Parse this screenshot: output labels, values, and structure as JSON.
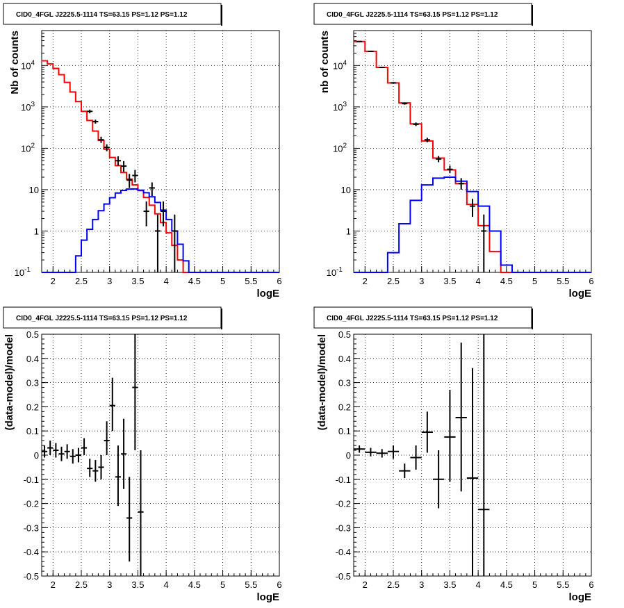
{
  "chart_data": [
    {
      "type": "line",
      "title": "CID0_4FGL J2225.5-1114 TS=63.15 PS=1.12 PS=1.12",
      "xlabel": "logE",
      "ylabel": "Nb of counts",
      "xlim": [
        1.8,
        6.0
      ],
      "ylim": [
        0.1,
        70000
      ],
      "yscale": "log",
      "grid": true,
      "x_ticks": [
        "2",
        "2.5",
        "3",
        "3.5",
        "4",
        "4.5",
        "5",
        "5.5",
        "6"
      ],
      "y_ticks": [
        {
          "v": 0.1,
          "label": "10^-1"
        },
        {
          "v": 1,
          "label": "1"
        },
        {
          "v": 10,
          "label": "10"
        },
        {
          "v": 100,
          "label": "10^2"
        },
        {
          "v": 1000,
          "label": "10^3"
        },
        {
          "v": 10000,
          "label": "10^4"
        }
      ],
      "bin_edges": [
        1.8,
        1.9,
        2.0,
        2.1,
        2.2,
        2.3,
        2.4,
        2.5,
        2.6,
        2.7,
        2.8,
        2.9,
        3.0,
        3.1,
        3.2,
        3.3,
        3.4,
        3.5,
        3.6,
        3.7,
        3.8,
        3.9,
        4.0,
        4.1,
        4.2,
        4.3,
        4.4,
        4.5,
        4.6,
        4.7,
        4.8,
        4.9,
        5.0,
        5.1,
        5.2,
        5.3,
        5.4,
        5.5,
        5.6,
        5.7,
        5.8,
        5.9,
        6.0
      ],
      "series": [
        {
          "color": "#ff0000",
          "style": "step",
          "values": [
            13000,
            11000,
            8500,
            6000,
            3900,
            2300,
            1350,
            780,
            470,
            260,
            155,
            95,
            60,
            38,
            26,
            18,
            13,
            9.5,
            6.5,
            4.2,
            2.6,
            1.6,
            0.9,
            0.45,
            0.2,
            0.1,
            0.1,
            0.1,
            0.1,
            0.1,
            0.1,
            0.1,
            0.1,
            0.1,
            0.1,
            0.1,
            0.1,
            0.1,
            0.1,
            0.1,
            0.1,
            0.1
          ]
        },
        {
          "color": "#0000ff",
          "style": "step",
          "values": [
            0.1,
            0.1,
            0.1,
            0.1,
            0.1,
            0.1,
            0.25,
            0.6,
            1.1,
            1.9,
            3.1,
            4.5,
            6.4,
            8.3,
            9.6,
            10.3,
            10.4,
            9.7,
            8.4,
            6.7,
            4.9,
            3.2,
            1.9,
            1.0,
            0.48,
            0.19,
            0.1,
            0.1,
            0.1,
            0.1,
            0.1,
            0.1,
            0.1,
            0.1,
            0.1,
            0.1,
            0.1,
            0.1,
            0.1,
            0.1,
            0.1,
            0.1
          ]
        }
      ],
      "points": [
        {
          "x": 2.65,
          "y": 780,
          "lo": 700,
          "hi": 860
        },
        {
          "x": 2.75,
          "y": 440,
          "lo": 395,
          "hi": 490
        },
        {
          "x": 2.85,
          "y": 160,
          "lo": 135,
          "hi": 190
        },
        {
          "x": 2.95,
          "y": 105,
          "lo": 85,
          "hi": 125
        },
        {
          "x": 3.15,
          "y": 50,
          "lo": 38,
          "hi": 64
        },
        {
          "x": 3.25,
          "y": 37,
          "lo": 27,
          "hi": 49
        },
        {
          "x": 3.35,
          "y": 17,
          "lo": 11,
          "hi": 24
        },
        {
          "x": 3.45,
          "y": 22,
          "lo": 15,
          "hi": 30
        },
        {
          "x": 3.65,
          "y": 3,
          "lo": 1.3,
          "hi": 5.2
        },
        {
          "x": 3.75,
          "y": 11,
          "lo": 7,
          "hi": 15
        },
        {
          "x": 3.85,
          "y": 1,
          "lo": 0.1,
          "hi": 2.5
        },
        {
          "x": 3.95,
          "y": 3,
          "lo": 1.3,
          "hi": 5.2
        },
        {
          "x": 4.15,
          "y": 1,
          "lo": 0.1,
          "hi": 2.5
        }
      ]
    },
    {
      "type": "line",
      "title": "CID0_4FGL J2225.5-1114 TS=63.15 PS=1.12 PS=1.12",
      "xlabel": "logE",
      "ylabel": "nb of counts",
      "xlim": [
        1.8,
        6.0
      ],
      "ylim": [
        0.1,
        70000
      ],
      "yscale": "log",
      "grid": true,
      "x_ticks": [
        "2",
        "2.5",
        "3",
        "3.5",
        "4",
        "4.5",
        "5",
        "5.5",
        "6"
      ],
      "y_ticks": [
        {
          "v": 0.1,
          "label": "10^-1"
        },
        {
          "v": 1,
          "label": "1"
        },
        {
          "v": 10,
          "label": "10"
        },
        {
          "v": 100,
          "label": "10^2"
        },
        {
          "v": 1000,
          "label": "10^3"
        },
        {
          "v": 10000,
          "label": "10^4"
        }
      ],
      "bin_edges": [
        1.8,
        2.0,
        2.2,
        2.4,
        2.6,
        2.8,
        3.0,
        3.2,
        3.4,
        3.6,
        3.8,
        4.0,
        4.2,
        4.4,
        4.6,
        4.8,
        5.0,
        5.2,
        5.4,
        5.6,
        5.8,
        6.0
      ],
      "series": [
        {
          "color": "#ff0000",
          "style": "step",
          "values": [
            38000,
            22000,
            9000,
            3800,
            1250,
            390,
            150,
            58,
            30,
            14,
            4.4,
            1.35,
            0.32,
            0.1,
            0.1,
            0.1,
            0.1,
            0.1,
            0.1,
            0.1,
            0.1
          ]
        },
        {
          "color": "#0000ff",
          "style": "step",
          "values": [
            0.1,
            0.1,
            0.1,
            0.3,
            1.5,
            5.5,
            13,
            19,
            20,
            16,
            9,
            4,
            1,
            0.15,
            0.1,
            0.1,
            0.1,
            0.1,
            0.1,
            0.1,
            0.1
          ]
        }
      ],
      "points": [
        {
          "x": 1.9,
          "y": 38000,
          "lo": 37200,
          "hi": 38800
        },
        {
          "x": 2.1,
          "y": 22000,
          "lo": 21400,
          "hi": 22600
        },
        {
          "x": 2.3,
          "y": 9000,
          "lo": 8700,
          "hi": 9300
        },
        {
          "x": 2.5,
          "y": 3800,
          "lo": 3650,
          "hi": 3950
        },
        {
          "x": 2.7,
          "y": 1200,
          "lo": 1130,
          "hi": 1270
        },
        {
          "x": 2.9,
          "y": 380,
          "lo": 345,
          "hi": 420
        },
        {
          "x": 3.1,
          "y": 160,
          "lo": 140,
          "hi": 180
        },
        {
          "x": 3.3,
          "y": 55,
          "lo": 46,
          "hi": 65
        },
        {
          "x": 3.5,
          "y": 31,
          "lo": 25,
          "hi": 38
        },
        {
          "x": 3.7,
          "y": 14,
          "lo": 10,
          "hi": 19
        },
        {
          "x": 3.9,
          "y": 4,
          "lo": 2.2,
          "hi": 6
        },
        {
          "x": 4.1,
          "y": 1,
          "lo": 0.1,
          "hi": 2.5
        }
      ]
    },
    {
      "type": "scatter",
      "title": "CID0_4FGL J2225.5-1114 TS=63.15 PS=1.12 PS=1.12",
      "xlabel": "logE",
      "ylabel": "(data-model)/model",
      "xlim": [
        1.8,
        6.0
      ],
      "ylim": [
        -0.5,
        0.5
      ],
      "yscale": "linear",
      "grid": true,
      "x_ticks": [
        "2",
        "2.5",
        "3",
        "3.5",
        "4",
        "4.5",
        "5",
        "5.5",
        "6"
      ],
      "y_ticks": [
        {
          "v": -0.5,
          "label": "-0.5"
        },
        {
          "v": -0.4,
          "label": "-0.4"
        },
        {
          "v": -0.3,
          "label": "-0.3"
        },
        {
          "v": -0.2,
          "label": "-0.2"
        },
        {
          "v": -0.1,
          "label": "-0.1"
        },
        {
          "v": 0,
          "label": "0"
        },
        {
          "v": 0.1,
          "label": "0.1"
        },
        {
          "v": 0.2,
          "label": "0.2"
        },
        {
          "v": 0.3,
          "label": "0.3"
        },
        {
          "v": 0.4,
          "label": "0.4"
        },
        {
          "v": 0.5,
          "label": "0.5"
        }
      ],
      "points": [
        {
          "x": 1.85,
          "y": 0.015,
          "lo": -0.01,
          "hi": 0.04,
          "xerr": 0.05
        },
        {
          "x": 1.95,
          "y": 0.03,
          "lo": 0.0,
          "hi": 0.06,
          "xerr": 0.05
        },
        {
          "x": 2.05,
          "y": 0.02,
          "lo": -0.01,
          "hi": 0.05,
          "xerr": 0.05
        },
        {
          "x": 2.15,
          "y": 0.005,
          "lo": -0.025,
          "hi": 0.035,
          "xerr": 0.05
        },
        {
          "x": 2.25,
          "y": 0.015,
          "lo": -0.015,
          "hi": 0.045,
          "xerr": 0.05
        },
        {
          "x": 2.35,
          "y": -0.005,
          "lo": -0.035,
          "hi": 0.025,
          "xerr": 0.05
        },
        {
          "x": 2.45,
          "y": 0.0,
          "lo": -0.03,
          "hi": 0.03,
          "xerr": 0.05
        },
        {
          "x": 2.55,
          "y": 0.03,
          "lo": 0.0,
          "hi": 0.07,
          "xerr": 0.05
        },
        {
          "x": 2.65,
          "y": -0.055,
          "lo": -0.09,
          "hi": -0.015,
          "xerr": 0.05
        },
        {
          "x": 2.75,
          "y": -0.065,
          "lo": -0.11,
          "hi": -0.02,
          "xerr": 0.05
        },
        {
          "x": 2.85,
          "y": -0.05,
          "lo": -0.1,
          "hi": 0.0,
          "xerr": 0.05
        },
        {
          "x": 2.95,
          "y": 0.06,
          "lo": 0.0,
          "hi": 0.14,
          "xerr": 0.05
        },
        {
          "x": 3.05,
          "y": 0.205,
          "lo": 0.1,
          "hi": 0.32,
          "xerr": 0.05
        },
        {
          "x": 3.15,
          "y": -0.09,
          "lo": -0.21,
          "hi": 0.04,
          "xerr": 0.05
        },
        {
          "x": 3.25,
          "y": 0.005,
          "lo": -0.14,
          "hi": 0.15,
          "xerr": 0.05
        },
        {
          "x": 3.35,
          "y": -0.26,
          "lo": -0.44,
          "hi": -0.09,
          "xerr": 0.05
        },
        {
          "x": 3.45,
          "y": 0.28,
          "lo": 0.02,
          "hi": 0.5,
          "xerr": 0.05
        },
        {
          "x": 3.55,
          "y": -0.235,
          "lo": -0.5,
          "hi": 0.02,
          "xerr": 0.05
        }
      ]
    },
    {
      "type": "scatter",
      "title": "CID0_4FGL J2225.5-1114 TS=63.15 PS=1.12 PS=1.12",
      "xlabel": "logE",
      "ylabel": "(data-model)/model",
      "xlim": [
        1.8,
        6.0
      ],
      "ylim": [
        -0.5,
        0.5
      ],
      "yscale": "linear",
      "grid": true,
      "x_ticks": [
        "2",
        "2.5",
        "3",
        "3.5",
        "4",
        "4.5",
        "5",
        "5.5",
        "6"
      ],
      "y_ticks": [
        {
          "v": -0.5,
          "label": "-0.5"
        },
        {
          "v": -0.4,
          "label": "-0.4"
        },
        {
          "v": -0.3,
          "label": "-0.3"
        },
        {
          "v": -0.2,
          "label": "-0.2"
        },
        {
          "v": -0.1,
          "label": "-0.1"
        },
        {
          "v": 0,
          "label": "0"
        },
        {
          "v": 0.1,
          "label": "0.1"
        },
        {
          "v": 0.2,
          "label": "0.2"
        },
        {
          "v": 0.3,
          "label": "0.3"
        },
        {
          "v": 0.4,
          "label": "0.4"
        },
        {
          "v": 0.5,
          "label": "0.5"
        }
      ],
      "points": [
        {
          "x": 1.9,
          "y": 0.025,
          "lo": 0.01,
          "hi": 0.04,
          "xerr": 0.1
        },
        {
          "x": 2.1,
          "y": 0.012,
          "lo": -0.005,
          "hi": 0.03,
          "xerr": 0.1
        },
        {
          "x": 2.3,
          "y": 0.008,
          "lo": -0.01,
          "hi": 0.025,
          "xerr": 0.1
        },
        {
          "x": 2.5,
          "y": 0.015,
          "lo": -0.015,
          "hi": 0.04,
          "xerr": 0.1
        },
        {
          "x": 2.7,
          "y": -0.065,
          "lo": -0.095,
          "hi": -0.035,
          "xerr": 0.1
        },
        {
          "x": 2.9,
          "y": -0.01,
          "lo": -0.06,
          "hi": 0.04,
          "xerr": 0.1
        },
        {
          "x": 3.1,
          "y": 0.095,
          "lo": 0.01,
          "hi": 0.18,
          "xerr": 0.1
        },
        {
          "x": 3.3,
          "y": -0.1,
          "lo": -0.22,
          "hi": 0.02,
          "xerr": 0.1
        },
        {
          "x": 3.5,
          "y": 0.075,
          "lo": -0.11,
          "hi": 0.27,
          "xerr": 0.1
        },
        {
          "x": 3.7,
          "y": 0.155,
          "lo": -0.15,
          "hi": 0.465,
          "xerr": 0.1
        },
        {
          "x": 3.9,
          "y": -0.095,
          "lo": -0.5,
          "hi": 0.36,
          "xerr": 0.1
        },
        {
          "x": 4.1,
          "y": -0.225,
          "lo": -0.5,
          "hi": 0.5,
          "xerr": 0.1
        }
      ]
    }
  ]
}
